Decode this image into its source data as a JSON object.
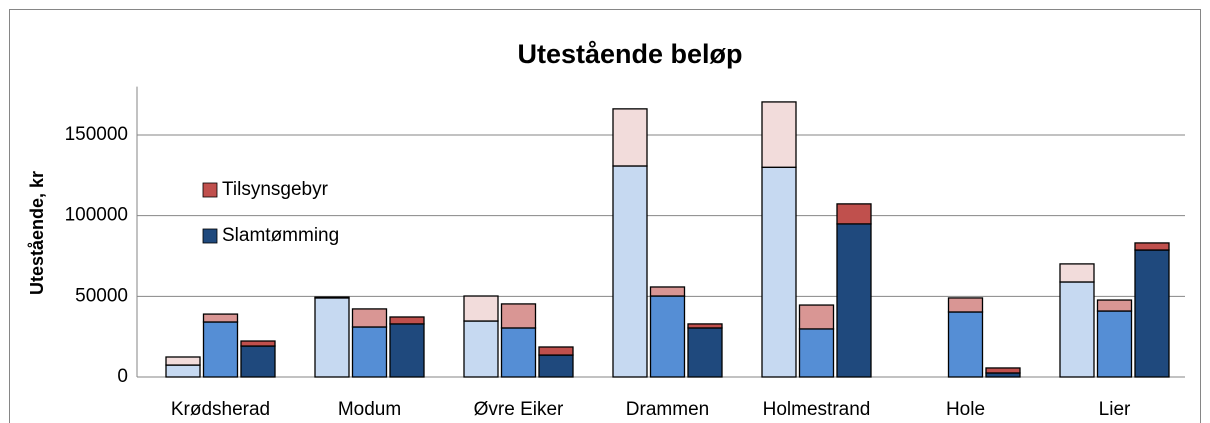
{
  "chart_data": {
    "type": "bar",
    "title": "Utestående beløp",
    "ylabel": "Utestående, kr",
    "categories": [
      "Krødsherad",
      "Modum",
      "Øvre Eiker",
      "Drammen",
      "Holmestrand",
      "Hole",
      "Lier"
    ],
    "series": [
      {
        "name": "Slamtømming",
        "colors": [
          "#c6d9f1",
          "#558ed5",
          "#1f497d"
        ],
        "values": [
          [
            7400,
            34100,
            19200
          ],
          [
            49000,
            31000,
            32900
          ],
          [
            34700,
            30400,
            13600
          ],
          [
            130800,
            50200,
            30400
          ],
          [
            130000,
            29800,
            94900
          ],
          [
            null,
            40300,
            2500
          ],
          [
            58900,
            40900,
            78700
          ]
        ]
      },
      {
        "name": "Tilsynsgebyr",
        "colors": [
          "#f2dcdb",
          "#d99694",
          "#c0504d"
        ],
        "values": [
          [
            5000,
            4900,
            3100
          ],
          [
            500,
            11200,
            4300
          ],
          [
            15500,
            14900,
            5000
          ],
          [
            35400,
            5600,
            2500
          ],
          [
            40500,
            14800,
            12400
          ],
          [
            null,
            8700,
            3100
          ],
          [
            11200,
            6800,
            4400
          ]
        ]
      }
    ],
    "legend_order": [
      1,
      0
    ],
    "ylim": [
      0,
      180000
    ],
    "yticks": [
      0,
      50000,
      100000,
      150000
    ],
    "grid": true
  }
}
